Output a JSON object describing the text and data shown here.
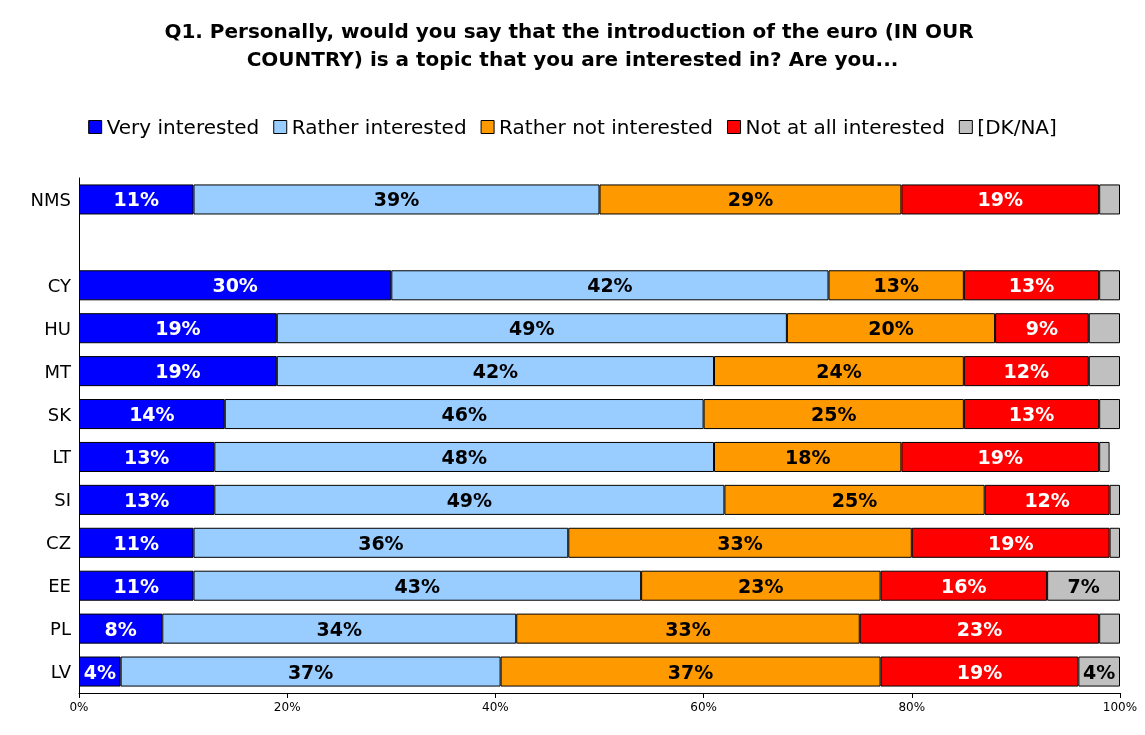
{
  "chart_data": {
    "type": "bar",
    "orientation": "horizontal",
    "stacked": true,
    "title": "Q1. Personally, would you say that the introduction of the euro (IN OUR COUNTRY) is a topic that you are interested in? Are you...",
    "categories": [
      "NMS",
      null,
      "CY",
      "HU",
      "MT",
      "SK",
      "LT",
      "SI",
      "CZ",
      "EE",
      "PL",
      "LV"
    ],
    "series": [
      {
        "name": "Very interested",
        "color": "#0000ff",
        "values": [
          11,
          null,
          30,
          19,
          19,
          14,
          13,
          13,
          11,
          11,
          8,
          4
        ],
        "value_labels": [
          "11%",
          null,
          "30%",
          "19%",
          "19%",
          "14%",
          "13%",
          "13%",
          "11%",
          "11%",
          "8%",
          "4%"
        ]
      },
      {
        "name": "Rather interested",
        "color": "#99ccff",
        "values": [
          39,
          null,
          42,
          49,
          42,
          46,
          48,
          49,
          36,
          43,
          34,
          36.5
        ],
        "value_labels": [
          "39%",
          null,
          "42%",
          "49%",
          "42%",
          "46%",
          "48%",
          "49%",
          "36%",
          "43%",
          "34%",
          "37%"
        ]
      },
      {
        "name": "Rather not interested",
        "color": "#ff9900",
        "values": [
          29,
          null,
          13,
          20,
          24,
          25,
          18,
          25,
          33,
          23,
          33,
          36.5
        ],
        "value_labels": [
          "29%",
          null,
          "13%",
          "20%",
          "24%",
          "25%",
          "18%",
          "25%",
          "33%",
          "23%",
          "33%",
          "37%"
        ]
      },
      {
        "name": "Not at all interested",
        "color": "#ff0000",
        "values": [
          19,
          null,
          13,
          9,
          12,
          13,
          19,
          12,
          19,
          16,
          23,
          19
        ],
        "value_labels": [
          "19%",
          null,
          "13%",
          "9%",
          "12%",
          "13%",
          "19%",
          "12%",
          "19%",
          "16%",
          "23%",
          "19%"
        ]
      },
      {
        "name": "[DK/NA]",
        "color": "#c0c0c0",
        "values": [
          2,
          null,
          2,
          3,
          3,
          2,
          1,
          1,
          1,
          7,
          2,
          4
        ],
        "value_labels": [
          null,
          null,
          null,
          null,
          null,
          null,
          null,
          null,
          null,
          "7%",
          null,
          "4%"
        ]
      }
    ],
    "xlim": [
      0,
      100
    ],
    "xticks": [
      {
        "value": 0,
        "label": "0%"
      },
      {
        "value": 20,
        "label": "20%"
      },
      {
        "value": 40,
        "label": "40%"
      },
      {
        "value": 60,
        "label": "60%"
      },
      {
        "value": 80,
        "label": "80%"
      },
      {
        "value": 100,
        "label": "100%"
      }
    ],
    "legend": "top",
    "grid": false
  }
}
